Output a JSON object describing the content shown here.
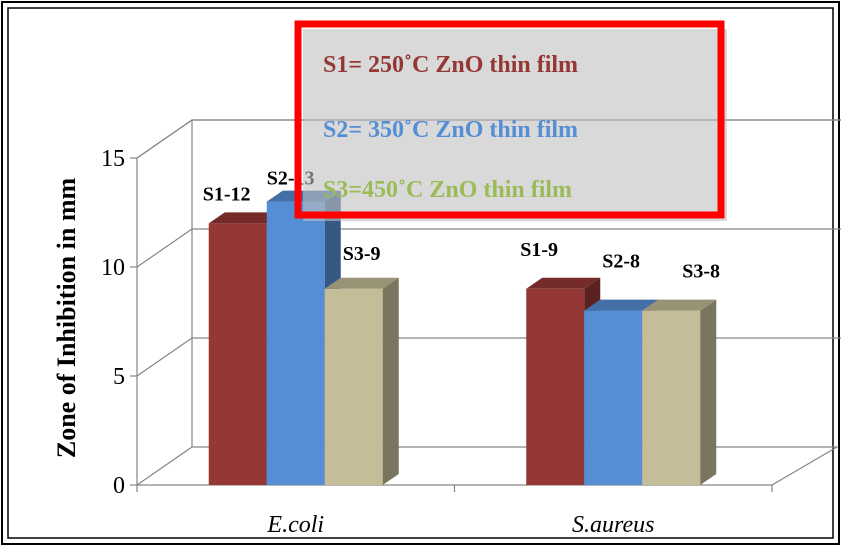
{
  "chart_data": {
    "type": "bar",
    "title": "",
    "xlabel": "",
    "ylabel": "Zone of Inhibition in mm",
    "ylim": [
      0,
      15
    ],
    "yticks": [
      0,
      5,
      10,
      15
    ],
    "categories": [
      "E.coli",
      "S.aureus"
    ],
    "series": [
      {
        "name": "S1= 250˚C ZnO thin film",
        "color": "#953735",
        "values": [
          12,
          9
        ],
        "labels": [
          "S1-12",
          "S1-9"
        ]
      },
      {
        "name": "S2= 350˚C ZnO thin film",
        "color": "#558ed5",
        "values": [
          13,
          8
        ],
        "labels": [
          "S2-13",
          "S2-8"
        ]
      },
      {
        "name": "S3=450˚C ZnO thin film",
        "color": "#c4bd97",
        "values": [
          9,
          8
        ],
        "labels": [
          "S3-9",
          "S3-8"
        ]
      }
    ],
    "legend": {
      "position": "top",
      "text_colors": [
        "#953735",
        "#558ed5",
        "#9bbb59"
      ],
      "border_color": "#ff0000"
    },
    "grid": true,
    "style": "3d-clustered-column"
  }
}
